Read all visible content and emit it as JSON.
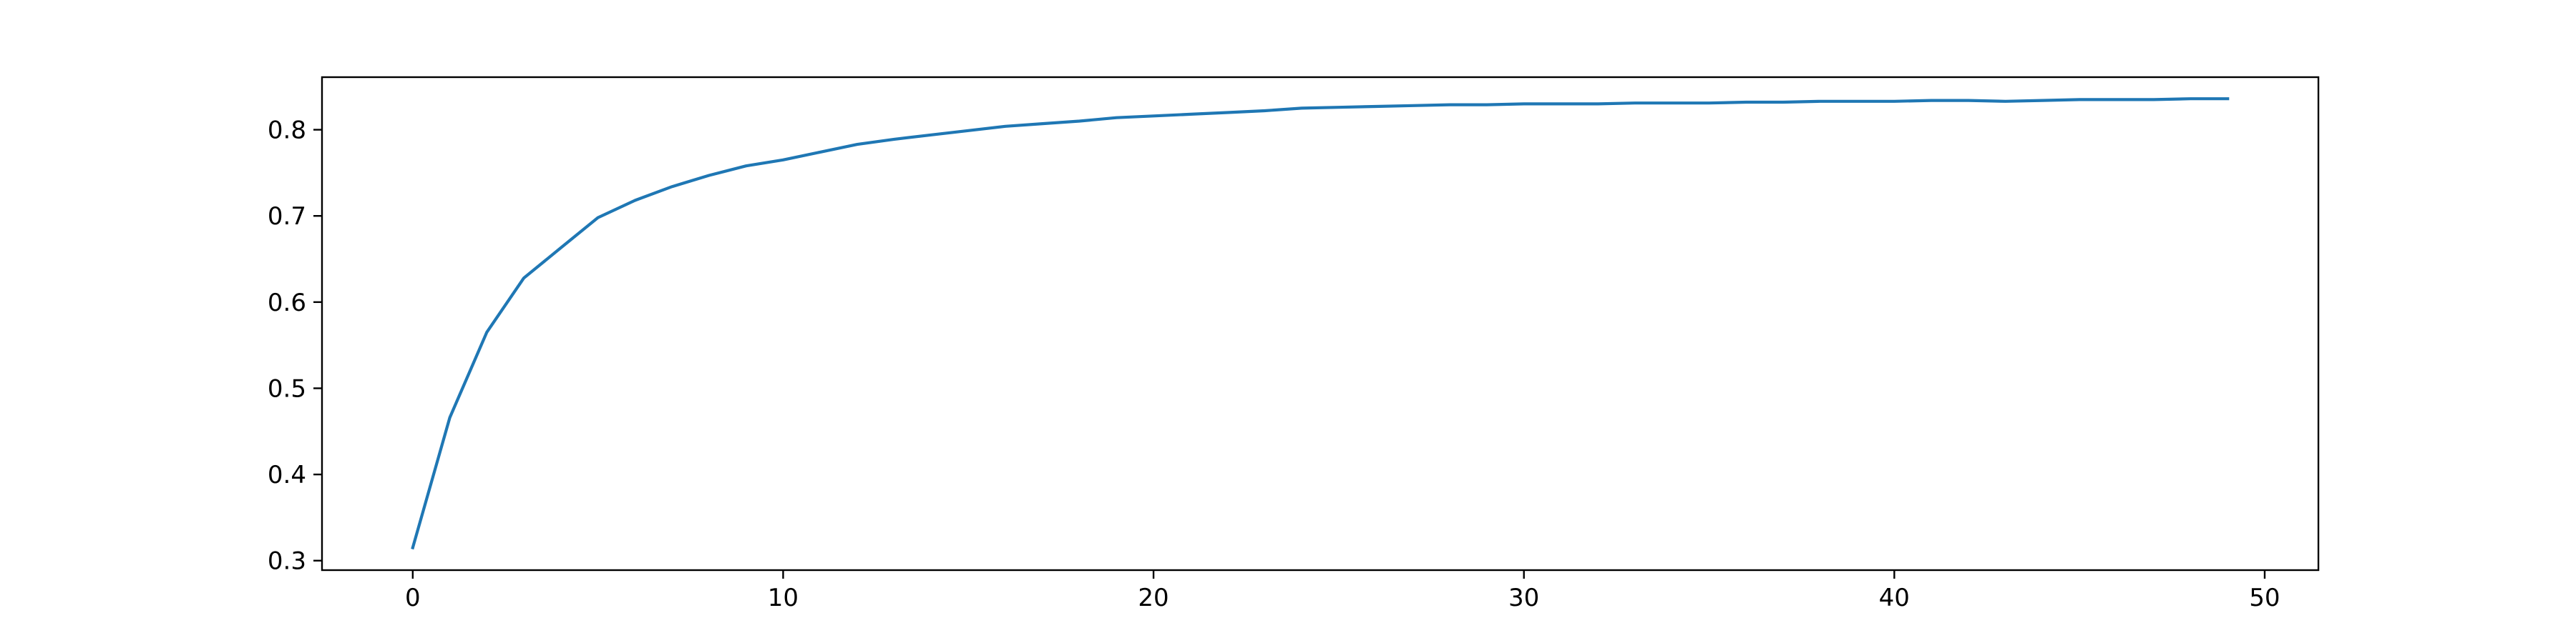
{
  "chart_data": {
    "type": "line",
    "title": "",
    "xlabel": "",
    "ylabel": "",
    "xlim": [
      -2.45,
      51.45
    ],
    "ylim": [
      0.289,
      0.861
    ],
    "x_ticks": [
      0,
      10,
      20,
      30,
      40,
      50
    ],
    "y_ticks": [
      0.3,
      0.4,
      0.5,
      0.6,
      0.7,
      0.8
    ],
    "grid": false,
    "legend": "none",
    "series": [
      {
        "color": "#1f77b4",
        "x": [
          0,
          1,
          2,
          3,
          4,
          5,
          6,
          7,
          8,
          9,
          10,
          11,
          12,
          13,
          14,
          15,
          16,
          17,
          18,
          19,
          20,
          21,
          22,
          23,
          24,
          25,
          26,
          27,
          28,
          29,
          30,
          31,
          32,
          33,
          34,
          35,
          36,
          37,
          38,
          39,
          40,
          41,
          42,
          43,
          44,
          45,
          46,
          47,
          48,
          49
        ],
        "values": [
          0.315,
          0.466,
          0.565,
          0.628,
          0.663,
          0.698,
          0.718,
          0.734,
          0.747,
          0.758,
          0.765,
          0.774,
          0.783,
          0.789,
          0.794,
          0.799,
          0.804,
          0.807,
          0.81,
          0.814,
          0.816,
          0.818,
          0.82,
          0.822,
          0.825,
          0.826,
          0.827,
          0.828,
          0.829,
          0.829,
          0.83,
          0.83,
          0.83,
          0.831,
          0.831,
          0.831,
          0.832,
          0.832,
          0.833,
          0.833,
          0.833,
          0.834,
          0.834,
          0.833,
          0.834,
          0.835,
          0.835,
          0.835,
          0.836,
          0.836
        ]
      }
    ]
  }
}
